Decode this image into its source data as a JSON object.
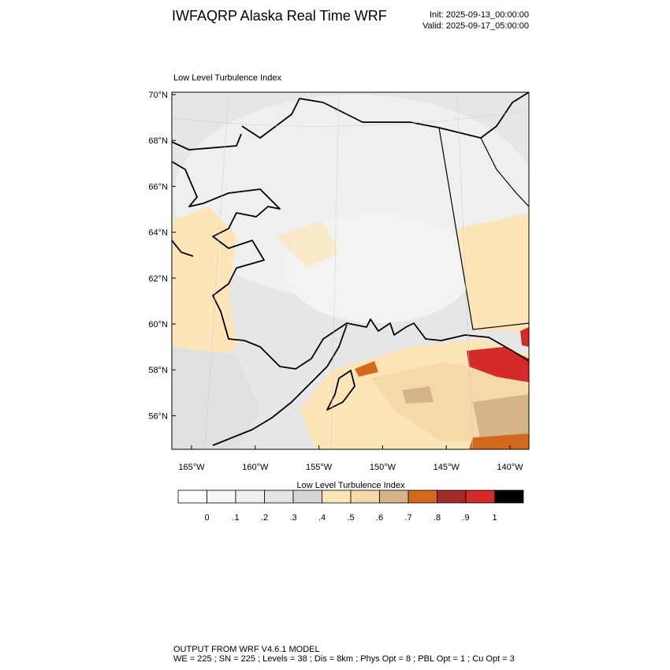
{
  "header": {
    "title": "IWFAQRP Alaska Real Time WRF",
    "init": "Init: 2025-09-13_00:00:00",
    "valid": "Valid: 2025-09-17_05:00:00"
  },
  "map": {
    "title": "Low Level Turbulence Index",
    "lat_labels": [
      "70°N",
      "68°N",
      "66°N",
      "64°N",
      "62°N",
      "60°N",
      "58°N",
      "56°N"
    ],
    "lon_labels": [
      "165°W",
      "160°W",
      "155°W",
      "150°W",
      "145°W",
      "140°W"
    ]
  },
  "colorbar": {
    "title": "Low Level Turbulence Index",
    "labels": [
      "0",
      ".1",
      ".2",
      ".3",
      ".4",
      ".5",
      ".6",
      ".7",
      ".8",
      ".9",
      "1"
    ],
    "colors": [
      "#ffffff",
      "#f7f7f7",
      "#efefef",
      "#e3e3e3",
      "#d6d6d6",
      "#fde5b8",
      "#f5d9a8",
      "#d6b48a",
      "#d2691e",
      "#a52a2a",
      "#d42a2a",
      "#000000"
    ]
  },
  "footer": {
    "lines": [
      "OUTPUT FROM WRF V4.6.1 MODEL",
      "WE = 225 ; SN = 225 ; Levels = 38 ; Dis = 8km ; Phys Opt = 8 ; PBL Opt = 1 ; Cu Opt = 3"
    ]
  }
}
